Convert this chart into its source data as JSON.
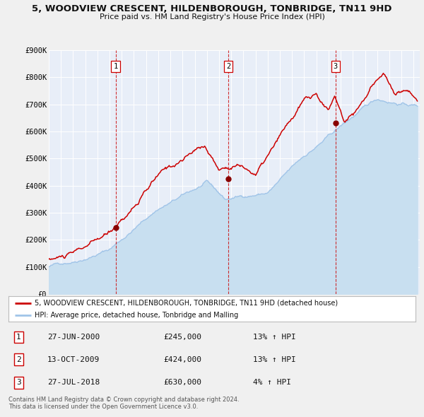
{
  "title": "5, WOODVIEW CRESCENT, HILDENBOROUGH, TONBRIDGE, TN11 9HD",
  "subtitle": "Price paid vs. HM Land Registry's House Price Index (HPI)",
  "ylim": [
    0,
    900000
  ],
  "yticks": [
    0,
    100000,
    200000,
    300000,
    400000,
    500000,
    600000,
    700000,
    800000,
    900000
  ],
  "ytick_labels": [
    "£0",
    "£100K",
    "£200K",
    "£300K",
    "£400K",
    "£500K",
    "£600K",
    "£700K",
    "£800K",
    "£900K"
  ],
  "fig_bg_color": "#f0f0f0",
  "plot_bg_color": "#e8eef8",
  "grid_color": "#ffffff",
  "sale_color": "#cc0000",
  "hpi_color": "#a0c4e8",
  "hpi_fill_color": "#c8dff0",
  "vline_color": "#cc0000",
  "sale_marker_color": "#880000",
  "transactions": [
    {
      "label": "1",
      "date_x": 2000.49,
      "price": 245000,
      "date_str": "27-JUN-2000",
      "hpi_pct": "13%",
      "direction": "↑"
    },
    {
      "label": "2",
      "date_x": 2009.78,
      "price": 424000,
      "date_str": "13-OCT-2009",
      "hpi_pct": "13%",
      "direction": "↑"
    },
    {
      "label": "3",
      "date_x": 2018.57,
      "price": 630000,
      "date_str": "27-JUL-2018",
      "hpi_pct": "4%",
      "direction": "↑"
    }
  ],
  "legend_label_sale": "5, WOODVIEW CRESCENT, HILDENBOROUGH, TONBRIDGE, TN11 9HD (detached house)",
  "legend_label_hpi": "HPI: Average price, detached house, Tonbridge and Malling",
  "footer_line1": "Contains HM Land Registry data © Crown copyright and database right 2024.",
  "footer_line2": "This data is licensed under the Open Government Licence v3.0.",
  "xmin": 1995,
  "xmax": 2025.5,
  "xticks": [
    1995,
    1996,
    1997,
    1998,
    1999,
    2000,
    2001,
    2002,
    2003,
    2004,
    2005,
    2006,
    2007,
    2008,
    2009,
    2010,
    2011,
    2012,
    2013,
    2014,
    2015,
    2016,
    2017,
    2018,
    2019,
    2020,
    2021,
    2022,
    2023,
    2024,
    2025
  ]
}
